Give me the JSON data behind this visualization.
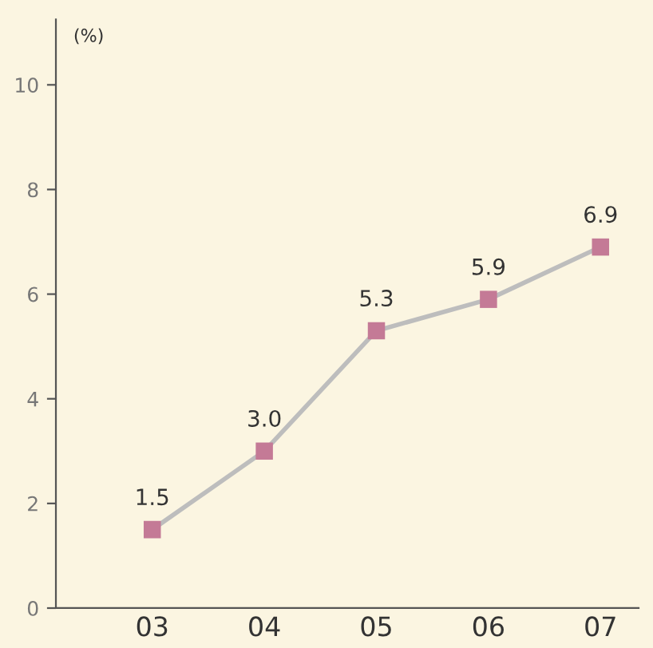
{
  "chart_data": {
    "type": "line",
    "ylabel": "(%)",
    "categories": [
      "03",
      "04",
      "05",
      "06",
      "07"
    ],
    "series": [
      {
        "color": "#c47a96",
        "values": [
          1.5,
          3.0,
          5.3,
          5.9,
          6.9
        ],
        "value_labels": [
          "1.5",
          "3.0",
          "5.3",
          "5.9",
          "6.9"
        ]
      }
    ],
    "marker": "square",
    "grid": false,
    "legend": false,
    "ylim": [
      0,
      11.25
    ],
    "yticks": [
      0,
      2,
      4,
      6,
      8,
      10
    ]
  }
}
